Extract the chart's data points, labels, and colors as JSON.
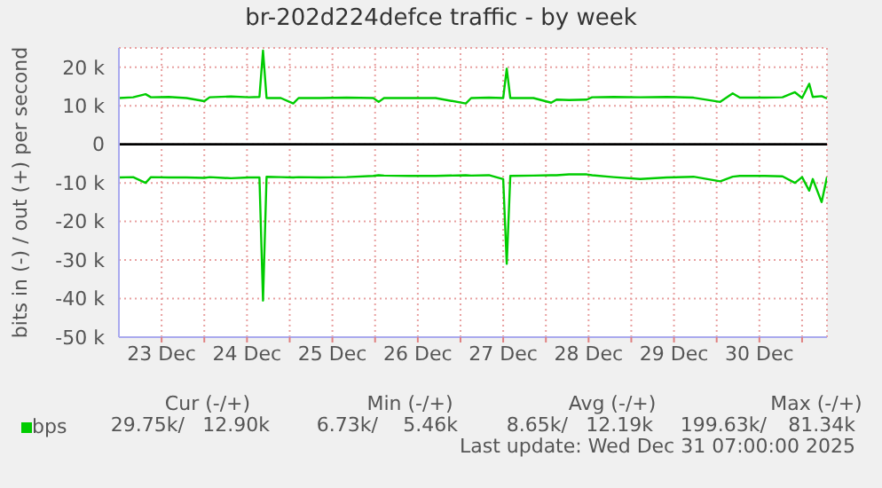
{
  "chart_data": {
    "type": "line",
    "title": "br-202d224defce traffic - by week",
    "ylabel": "bits in (-) / out (+) per second",
    "x": [
      "2025-12-23T00:00",
      "2025-12-23T04:00",
      "2025-12-23T07:30",
      "2025-12-23T09:00",
      "2025-12-23T14:00",
      "2025-12-23T19:00",
      "2025-12-24T00:00",
      "2025-12-24T01:30",
      "2025-12-24T07:30",
      "2025-12-24T12:30",
      "2025-12-24T15:30",
      "2025-12-24T16:30",
      "2025-12-24T17:30",
      "2025-12-24T21:30",
      "2025-12-25T01:00",
      "2025-12-25T02:30",
      "2025-12-25T08:30",
      "2025-12-25T16:00",
      "2025-12-25T23:30",
      "2025-12-26T01:00",
      "2025-12-26T02:30",
      "2025-12-26T09:30",
      "2025-12-26T17:00",
      "2025-12-27T01:30",
      "2025-12-27T03:00",
      "2025-12-27T08:00",
      "2025-12-27T12:00",
      "2025-12-27T13:00",
      "2025-12-27T14:00",
      "2025-12-27T20:30",
      "2025-12-28T01:30",
      "2025-12-28T03:00",
      "2025-12-28T06:30",
      "2025-12-28T11:30",
      "2025-12-28T13:00",
      "2025-12-28T19:00",
      "2025-12-29T02:30",
      "2025-12-29T10:00",
      "2025-12-29T17:30",
      "2025-12-30T01:00",
      "2025-12-30T04:30",
      "2025-12-30T06:30",
      "2025-12-30T13:30",
      "2025-12-30T18:30",
      "2025-12-30T22:00",
      "2025-12-31T00:00",
      "2025-12-31T02:00",
      "2025-12-31T03:00",
      "2025-12-31T05:30",
      "2025-12-31T07:00"
    ],
    "series": [
      {
        "name": "bps",
        "color": "#00cc00",
        "values": [
          12000,
          12200,
          13000,
          12200,
          12300,
          12000,
          11200,
          12200,
          12400,
          12200,
          12300,
          24300,
          12000,
          12000,
          10600,
          12000,
          12000,
          12100,
          12000,
          11000,
          12000,
          12000,
          12000,
          10600,
          12000,
          12100,
          12000,
          19600,
          12000,
          12000,
          10800,
          11600,
          11500,
          11600,
          12200,
          12300,
          12200,
          12300,
          12100,
          11000,
          13200,
          12100,
          12100,
          12200,
          13500,
          12000,
          15700,
          12300,
          12500,
          11900
        ]
      },
      {
        "color": "#00cc00",
        "values": [
          -8600,
          -8500,
          -10000,
          -8500,
          -8600,
          -8600,
          -8700,
          -8500,
          -8800,
          -8600,
          -8600,
          -40500,
          -8400,
          -8500,
          -8600,
          -8500,
          -8600,
          -8500,
          -8200,
          -8000,
          -8100,
          -8200,
          -8200,
          -8000,
          -8100,
          -8000,
          -9000,
          -31000,
          -8200,
          -8100,
          -8000,
          -8000,
          -7800,
          -7800,
          -8000,
          -8500,
          -9000,
          -8600,
          -8400,
          -9600,
          -8400,
          -8200,
          -8200,
          -8300,
          -10000,
          -8500,
          -12000,
          -9000,
          -15000,
          -8500
        ]
      }
    ],
    "xlim": [
      "2025-12-23T00:00",
      "2025-12-31T07:00"
    ],
    "xticks": [
      {
        "value": "2025-12-23T12:00",
        "label": "23 Dec"
      },
      {
        "value": "2025-12-24T00:00",
        "label": null
      },
      {
        "value": "2025-12-24T12:00",
        "label": "24 Dec"
      },
      {
        "value": "2025-12-25T00:00",
        "label": null
      },
      {
        "value": "2025-12-25T12:00",
        "label": "25 Dec"
      },
      {
        "value": "2025-12-26T00:00",
        "label": null
      },
      {
        "value": "2025-12-26T12:00",
        "label": "26 Dec"
      },
      {
        "value": "2025-12-27T00:00",
        "label": null
      },
      {
        "value": "2025-12-27T12:00",
        "label": "27 Dec"
      },
      {
        "value": "2025-12-28T00:00",
        "label": null
      },
      {
        "value": "2025-12-28T12:00",
        "label": "28 Dec"
      },
      {
        "value": "2025-12-29T00:00",
        "label": null
      },
      {
        "value": "2025-12-29T12:00",
        "label": "29 Dec"
      },
      {
        "value": "2025-12-30T00:00",
        "label": null
      },
      {
        "value": "2025-12-30T12:00",
        "label": "30 Dec"
      },
      {
        "value": "2025-12-31T00:00",
        "label": null
      }
    ],
    "ylim": [
      -50000,
      25000
    ],
    "yticks": [
      {
        "value": -50000,
        "label": "-50 k"
      },
      {
        "value": -40000,
        "label": "-40 k"
      },
      {
        "value": -30000,
        "label": "-30 k"
      },
      {
        "value": -20000,
        "label": "-20 k"
      },
      {
        "value": -10000,
        "label": "-10 k"
      },
      0,
      {
        "value": 10000,
        "label": "10 k"
      },
      {
        "value": 20000,
        "label": "20 k"
      }
    ],
    "ref_lines": [
      {
        "axis": "y",
        "value": 0,
        "color": "#000000"
      }
    ],
    "grid": true,
    "legend": "bottom left",
    "marker": "none",
    "line_style": "solid",
    "annotations": [
      "Cur (-/+)",
      "Min (-/+)",
      "Avg (-/+)",
      "Max (-/+)",
      "29.75k/",
      "12.90k",
      "6.73k/",
      "5.46k",
      "8.65k/",
      "12.19k",
      "199.63k/",
      "81.34k",
      "Last update: Wed Dec 31 07:00:00 2025"
    ]
  }
}
